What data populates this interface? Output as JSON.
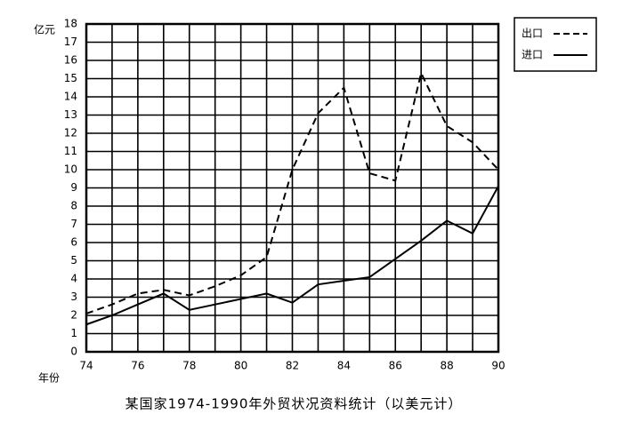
{
  "chart_data": {
    "type": "line",
    "title": "某国家1974-1990年外贸状况资料统计（以美元计）",
    "y_label": "亿元",
    "x_label": "年份",
    "x": [
      74,
      75,
      76,
      77,
      78,
      79,
      80,
      81,
      82,
      83,
      84,
      85,
      86,
      87,
      88,
      89,
      90
    ],
    "series": [
      {
        "name": "出口",
        "color": "#000000",
        "linestyle": "dashed",
        "values": [
          2.1,
          2.6,
          3.2,
          3.4,
          3.1,
          3.6,
          4.2,
          5.2,
          10.0,
          13.1,
          14.5,
          9.8,
          9.4,
          15.3,
          12.4,
          11.5,
          10.0
        ]
      },
      {
        "name": "进口",
        "color": "#000000",
        "linestyle": "solid",
        "values": [
          1.5,
          2.0,
          2.6,
          3.2,
          2.3,
          2.6,
          2.9,
          3.2,
          2.7,
          3.7,
          3.9,
          4.1,
          5.1,
          6.1,
          7.2,
          6.5,
          9.1
        ]
      }
    ],
    "xlim": [
      74,
      90
    ],
    "xticks": [
      74,
      76,
      78,
      80,
      82,
      84,
      86,
      88,
      90
    ],
    "ylim": [
      0,
      18
    ],
    "yticks": [
      0,
      1,
      2,
      3,
      4,
      5,
      6,
      7,
      8,
      9,
      10,
      11,
      12,
      13,
      14,
      15,
      16,
      17,
      18
    ],
    "grid": true,
    "legend": "upper right"
  }
}
